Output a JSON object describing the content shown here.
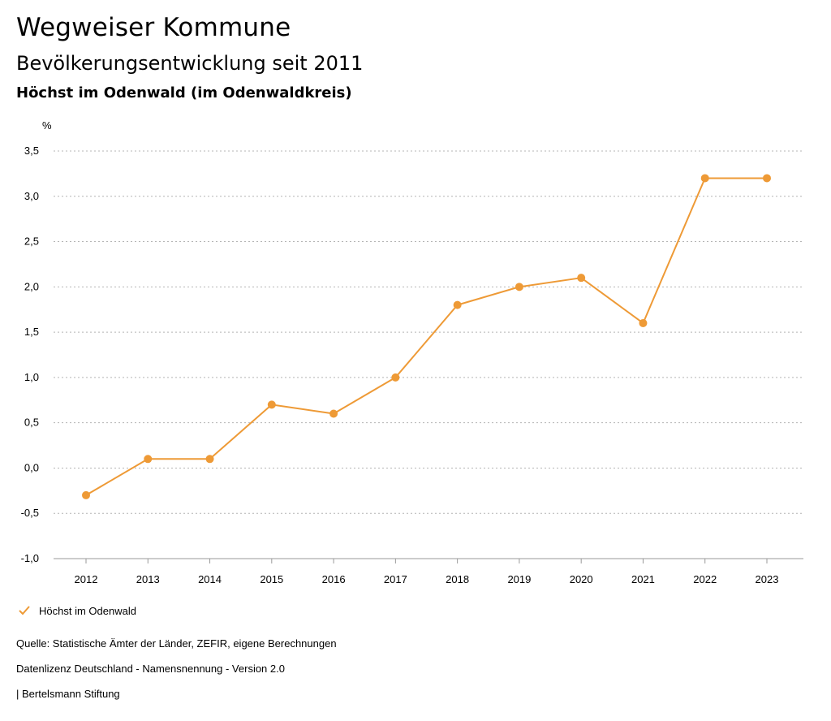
{
  "header": {
    "title": "Wegweiser Kommune",
    "subtitle": "Bevölkerungsentwicklung seit 2011",
    "region": "Höchst im Odenwald (im Odenwaldkreis)"
  },
  "chart_data": {
    "type": "line",
    "ylabel": "%",
    "xlabel": "",
    "ylim": [
      -1.0,
      3.5
    ],
    "yticks": [
      "-1,0",
      "-0,5",
      "0,0",
      "0,5",
      "1,0",
      "1,5",
      "2,0",
      "2,5",
      "3,0",
      "3,5"
    ],
    "x": [
      "2012",
      "2013",
      "2014",
      "2015",
      "2016",
      "2017",
      "2018",
      "2019",
      "2020",
      "2021",
      "2022",
      "2023"
    ],
    "series": [
      {
        "name": "Höchst im Odenwald",
        "values": [
          -0.3,
          0.1,
          0.1,
          0.7,
          0.6,
          1.0,
          1.8,
          2.0,
          2.1,
          1.6,
          3.2,
          3.2
        ],
        "color": "#ee9a36"
      }
    ],
    "grid": true,
    "grid_style": "dotted",
    "legend_position": "bottom-left"
  },
  "legend": {
    "label": "Höchst im Odenwald"
  },
  "footer": {
    "source": "Quelle: Statistische Ämter der Länder, ZEFIR, eigene Berechnungen",
    "license": "Datenlizenz Deutschland - Namensnennung - Version 2.0",
    "publisher": "| Bertelsmann Stiftung"
  }
}
